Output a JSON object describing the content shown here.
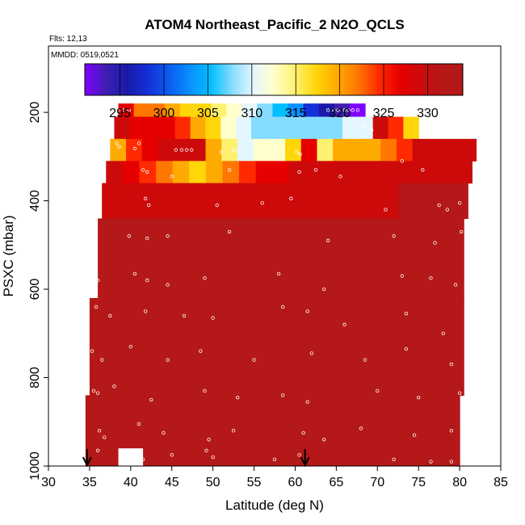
{
  "chart_data": {
    "type": "heatmap",
    "title": "ATOM4 Northeast_Pacific_2 N2O_QCLS",
    "flights_label": "Flts: 12,13",
    "mmdd_label": "MMDD: 0519,0521",
    "xlabel": "Latitude (deg N)",
    "ylabel": "PSXC (mbar)",
    "xlim": [
      30,
      85
    ],
    "ylim": [
      1000,
      50
    ],
    "y_reversed": true,
    "x_ticks": [
      30,
      35,
      40,
      45,
      50,
      55,
      60,
      65,
      70,
      75,
      80,
      85
    ],
    "y_ticks": [
      200,
      400,
      600,
      800,
      1000
    ],
    "colorbar": {
      "range": [
        291,
        334
      ],
      "ticks": [
        295,
        300,
        305,
        310,
        315,
        320,
        325,
        330
      ],
      "colors": [
        "#7f00ff",
        "#3e1fb0",
        "#1a1aa8",
        "#1430d8",
        "#0a5cf0",
        "#0a90ff",
        "#00bfff",
        "#86dcff",
        "#e4f6ff",
        "#ffffcc",
        "#fff170",
        "#ffd60a",
        "#ffaa00",
        "#ff7700",
        "#ff2a00",
        "#e60000",
        "#cc0a0a",
        "#b41818"
      ]
    },
    "value_description": "N2O mixing ratio",
    "layers": [
      {
        "p_top": 180,
        "p_bot": 210,
        "lat_start": 38.5,
        "lat_end": 68.5,
        "values": [
          327,
          324,
          323,
          321,
          319,
          318,
          316,
          314,
          312,
          310,
          307,
          303,
          300,
          296,
          294,
          291
        ]
      },
      {
        "p_top": 210,
        "p_bot": 260,
        "lat_start": 38,
        "lat_end": 75,
        "values": [
          330,
          329,
          328,
          327,
          325,
          322,
          318,
          314,
          311,
          310,
          310,
          310,
          310,
          310,
          310,
          311,
          311,
          330,
          326,
          318
        ]
      },
      {
        "p_top": 260,
        "p_bot": 310,
        "lat_start": 37.5,
        "lat_end": 82,
        "values": [
          322,
          325,
          328,
          330,
          330,
          330,
          321,
          316,
          312,
          313,
          314,
          318,
          328,
          315,
          322,
          320,
          322,
          324,
          325,
          330,
          331,
          331,
          331
        ]
      },
      {
        "p_top": 310,
        "p_bot": 360,
        "lat_start": 37,
        "lat_end": 81.5,
        "values": [
          330,
          328,
          326,
          324,
          320,
          318,
          321,
          323,
          326,
          328,
          329,
          330,
          331,
          331,
          331,
          331,
          331,
          331,
          331,
          331,
          331,
          331
        ]
      },
      {
        "p_top": 360,
        "p_bot": 440,
        "lat_start": 36.5,
        "lat_end": 81,
        "values": [
          331,
          331,
          331,
          330,
          330,
          331,
          331,
          331,
          331,
          331,
          331,
          331,
          331,
          331,
          331,
          331,
          331,
          332,
          332,
          332,
          332
        ]
      },
      {
        "p_top": 440,
        "p_bot": 620,
        "lat_start": 36,
        "lat_end": 80.5,
        "values": [
          332,
          332,
          332,
          332,
          332,
          332,
          332,
          332,
          332,
          332,
          332,
          332,
          332,
          332,
          332,
          332,
          332,
          332,
          332,
          332
        ]
      },
      {
        "p_top": 620,
        "p_bot": 840,
        "lat_start": 35,
        "lat_end": 80.5,
        "values": [
          332,
          332,
          332,
          332,
          332,
          332,
          332,
          332,
          332,
          332,
          332,
          332,
          332,
          332,
          332,
          332,
          332,
          332,
          332,
          332
        ]
      },
      {
        "p_top": 840,
        "p_bot": 1000,
        "lat_start": 34.5,
        "lat_end": 80,
        "values": [
          332,
          332,
          332,
          332,
          332,
          332,
          332,
          332,
          332,
          332,
          332,
          332,
          332,
          332,
          332,
          332,
          332,
          332,
          332,
          332
        ]
      }
    ],
    "blank_region": {
      "lat_start": 38.5,
      "lat_end": 41.5,
      "p_top": 960,
      "p_bot": 1000
    },
    "observations": [
      [
        38.5,
        195
      ],
      [
        39.2,
        195
      ],
      [
        39.8,
        195
      ],
      [
        64.0,
        195
      ],
      [
        64.7,
        195
      ],
      [
        65.2,
        195
      ],
      [
        66.0,
        195
      ],
      [
        66.5,
        195
      ],
      [
        67.0,
        195
      ],
      [
        67.6,
        195
      ],
      [
        68.3,
        230
      ],
      [
        68.8,
        235
      ],
      [
        69.3,
        240
      ],
      [
        38.3,
        270
      ],
      [
        38.6,
        278
      ],
      [
        40.5,
        282
      ],
      [
        41.0,
        270
      ],
      [
        45.5,
        285
      ],
      [
        46.2,
        285
      ],
      [
        46.8,
        285
      ],
      [
        47.4,
        285
      ],
      [
        51.0,
        290
      ],
      [
        52.5,
        285
      ],
      [
        53.0,
        288
      ],
      [
        55.0,
        282
      ],
      [
        60.2,
        290
      ],
      [
        60.6,
        295
      ],
      [
        41.5,
        330
      ],
      [
        42.0,
        335
      ],
      [
        45.0,
        345
      ],
      [
        52.0,
        330
      ],
      [
        60.5,
        335
      ],
      [
        62.5,
        330
      ],
      [
        65.5,
        345
      ],
      [
        73.0,
        310
      ],
      [
        75.5,
        330
      ],
      [
        41.8,
        395
      ],
      [
        42.2,
        410
      ],
      [
        50.5,
        410
      ],
      [
        56.0,
        405
      ],
      [
        59.5,
        395
      ],
      [
        71.0,
        420
      ],
      [
        77.5,
        410
      ],
      [
        78.5,
        420
      ],
      [
        80.0,
        405
      ],
      [
        39.8,
        480
      ],
      [
        42.0,
        485
      ],
      [
        44.5,
        480
      ],
      [
        52.0,
        470
      ],
      [
        64.0,
        490
      ],
      [
        72.0,
        480
      ],
      [
        77.0,
        495
      ],
      [
        80.2,
        470
      ],
      [
        35.2,
        560
      ],
      [
        36.0,
        580
      ],
      [
        40.5,
        565
      ],
      [
        42.0,
        580
      ],
      [
        44.5,
        590
      ],
      [
        49.0,
        575
      ],
      [
        58.0,
        565
      ],
      [
        63.5,
        600
      ],
      [
        73.0,
        570
      ],
      [
        76.5,
        575
      ],
      [
        79.5,
        590
      ],
      [
        35.8,
        640
      ],
      [
        37.5,
        660
      ],
      [
        41.8,
        650
      ],
      [
        46.5,
        660
      ],
      [
        50.0,
        665
      ],
      [
        58.5,
        640
      ],
      [
        61.5,
        650
      ],
      [
        66.0,
        680
      ],
      [
        73.5,
        655
      ],
      [
        78.0,
        700
      ],
      [
        35.3,
        740
      ],
      [
        36.5,
        760
      ],
      [
        40.0,
        730
      ],
      [
        44.5,
        760
      ],
      [
        48.5,
        740
      ],
      [
        55.0,
        760
      ],
      [
        62.0,
        745
      ],
      [
        68.5,
        760
      ],
      [
        73.5,
        735
      ],
      [
        79.0,
        770
      ],
      [
        35.5,
        830
      ],
      [
        36.0,
        835
      ],
      [
        38.0,
        820
      ],
      [
        42.5,
        850
      ],
      [
        49.0,
        830
      ],
      [
        53.0,
        845
      ],
      [
        58.5,
        840
      ],
      [
        61.5,
        855
      ],
      [
        70.0,
        830
      ],
      [
        75.0,
        845
      ],
      [
        80.0,
        835
      ],
      [
        36.2,
        920
      ],
      [
        36.8,
        935
      ],
      [
        41.0,
        905
      ],
      [
        44.0,
        925
      ],
      [
        49.5,
        940
      ],
      [
        52.5,
        920
      ],
      [
        61.0,
        925
      ],
      [
        63.5,
        940
      ],
      [
        68.0,
        915
      ],
      [
        74.5,
        930
      ],
      [
        79.0,
        920
      ],
      [
        36.0,
        965
      ],
      [
        41.5,
        985
      ],
      [
        45.0,
        975
      ],
      [
        49.2,
        965
      ],
      [
        50.0,
        980
      ],
      [
        57.5,
        985
      ],
      [
        60.5,
        975
      ],
      [
        72.0,
        985
      ],
      [
        76.5,
        990
      ],
      [
        79.0,
        990
      ]
    ],
    "arrow_markers": [
      34.7,
      61.2
    ],
    "grid": false,
    "legend": "top (horizontal colorbar)"
  }
}
